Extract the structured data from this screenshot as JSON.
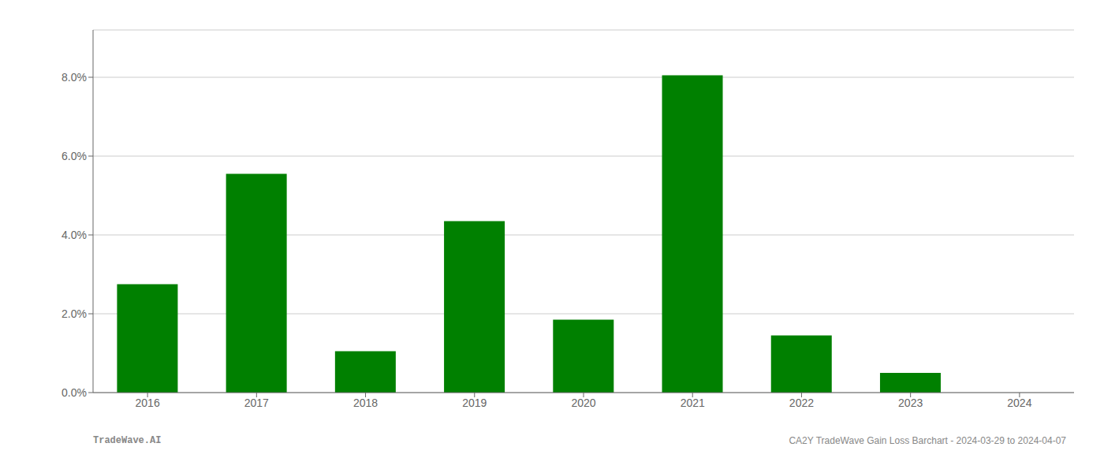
{
  "chart_data": {
    "type": "bar",
    "categories": [
      "2016",
      "2017",
      "2018",
      "2019",
      "2020",
      "2021",
      "2022",
      "2023",
      "2024"
    ],
    "values": [
      0.0275,
      0.0555,
      0.0105,
      0.0435,
      0.0185,
      0.0805,
      0.0145,
      0.005,
      0.0
    ],
    "color": "#008000",
    "ylim": [
      0,
      0.092
    ],
    "yticks": [
      {
        "value": 0.0,
        "label": "0.0%"
      },
      {
        "value": 0.02,
        "label": "2.0%"
      },
      {
        "value": 0.04,
        "label": "4.0%"
      },
      {
        "value": 0.06,
        "label": "6.0%"
      },
      {
        "value": 0.08,
        "label": "8.0%"
      }
    ],
    "grid": true,
    "annotations": [
      "TradeWave.AI",
      "CA2Y TradeWave Gain Loss Barchart - 2024-03-29 to 2024-04-07"
    ]
  }
}
